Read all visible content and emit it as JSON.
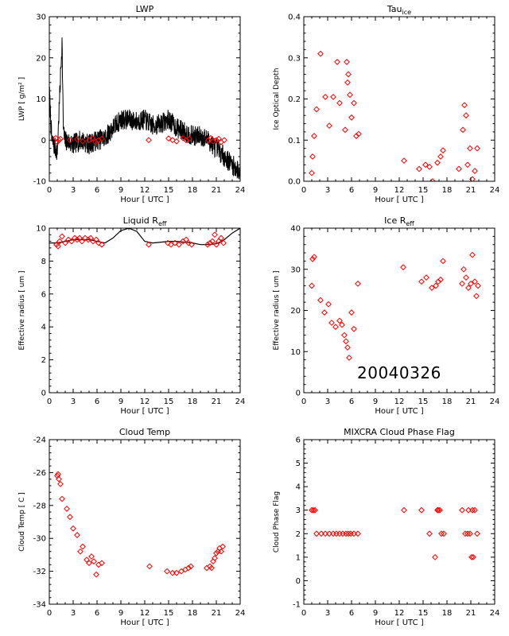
{
  "colors": {
    "axis": "#000000",
    "series": "#ff0000",
    "line": "#000000",
    "background": "#ffffff"
  },
  "date_label": "20040326",
  "chart_data": [
    {
      "type": "line",
      "title": "LWP",
      "title_sub": "",
      "xlabel": "Hour [ UTC ]",
      "ylabel": "LWP [ g/m² ]",
      "xlim": [
        0,
        24
      ],
      "ylim": [
        -10,
        30
      ],
      "xticks": [
        0,
        3,
        6,
        9,
        12,
        15,
        18,
        21,
        24
      ],
      "yticks": [
        -10,
        0,
        10,
        20,
        30
      ],
      "ytick_labels": [
        "-10",
        "0",
        "10",
        "20",
        "30"
      ],
      "grid": false,
      "noisy_series": {
        "name": "",
        "color": "#000000",
        "x": [
          0,
          0.3,
          1,
          1.6,
          1.75,
          1.9,
          3,
          4,
          5,
          6,
          7,
          8,
          9,
          10,
          11,
          12,
          13,
          14,
          15,
          16,
          17,
          18,
          19,
          20,
          21,
          22,
          23,
          24
        ],
        "y": [
          12,
          0,
          -3,
          24,
          4,
          0,
          -1,
          0,
          -1,
          0,
          0.5,
          3,
          5,
          5,
          4.5,
          5,
          3.5,
          4,
          5,
          3,
          2,
          1,
          1,
          0,
          -2,
          -4,
          -6,
          -8
        ],
        "noise": 2.5
      },
      "markers": {
        "name": "",
        "color": "#ff0000",
        "x": [
          0.8,
          1.0,
          1.2,
          1.4,
          2.6,
          3.5,
          4.2,
          5.0,
          5.4,
          5.8,
          6.2,
          6.6,
          12.5,
          15.0,
          15.5,
          16.0,
          16.8,
          17.2,
          17.6,
          20.0,
          20.3,
          20.6,
          21.0,
          21.3,
          21.6,
          22.0
        ],
        "y": [
          0.5,
          -0.5,
          0,
          0.3,
          0,
          0.2,
          -0.3,
          0,
          0.5,
          -0.4,
          0,
          0.3,
          0,
          0.4,
          0,
          -0.3,
          0.5,
          0,
          0.3,
          0,
          0.5,
          -0.3,
          0,
          0.3,
          -0.5,
          0
        ]
      }
    },
    {
      "type": "scatter",
      "title": "Tau",
      "title_sub": "ice",
      "xlabel": "Hour [ UTC ]",
      "ylabel": "Ice Optical Depth",
      "xlim": [
        0,
        24
      ],
      "ylim": [
        0,
        0.4
      ],
      "xticks": [
        0,
        3,
        6,
        9,
        12,
        15,
        18,
        21,
        24
      ],
      "yticks": [
        0,
        0.1,
        0.2,
        0.3,
        0.4
      ],
      "ytick_labels": [
        "0.0",
        "0.1",
        "0.2",
        "0.3",
        "0.4"
      ],
      "grid": false,
      "series": [
        {
          "name": "",
          "color": "#ff0000",
          "x": [
            1.0,
            1.1,
            1.3,
            1.6,
            2.1,
            2.7,
            3.2,
            3.7,
            4.2,
            4.5,
            5.2,
            5.4,
            5.5,
            5.6,
            5.8,
            6.0,
            6.3,
            6.6,
            6.9,
            12.6,
            14.5,
            15.3,
            15.8,
            16.2,
            16.8,
            17.2,
            17.5,
            19.5,
            20.0,
            20.2,
            20.4,
            20.6,
            20.9,
            21.2,
            21.5,
            21.8
          ],
          "y": [
            0.02,
            0.06,
            0.11,
            0.175,
            0.31,
            0.205,
            0.135,
            0.205,
            0.29,
            0.19,
            0.125,
            0.29,
            0.24,
            0.26,
            0.21,
            0.155,
            0.19,
            0.11,
            0.115,
            0.05,
            0.03,
            0.04,
            0.035,
            0.0,
            0.045,
            0.06,
            0.075,
            0.03,
            0.125,
            0.185,
            0.16,
            0.04,
            0.08,
            0.005,
            0.025,
            0.08
          ]
        }
      ]
    },
    {
      "type": "scatter",
      "title": "Liquid R",
      "title_sub": "eff",
      "xlabel": "Hour [ UTC ]",
      "ylabel": "Effective radius [ um ]",
      "xlim": [
        0,
        24
      ],
      "ylim": [
        0,
        10
      ],
      "xticks": [
        0,
        3,
        6,
        9,
        12,
        15,
        18,
        21,
        24
      ],
      "yticks": [
        0,
        2,
        4,
        6,
        8,
        10
      ],
      "ytick_labels": [
        "0",
        "2",
        "4",
        "6",
        "8",
        "10"
      ],
      "grid": false,
      "curve": {
        "name": "",
        "color": "#000000",
        "x": [
          0,
          1,
          2,
          3,
          4,
          5,
          6,
          7,
          8,
          9,
          10,
          11,
          12,
          13,
          14,
          15,
          16,
          17,
          18,
          19,
          20,
          21,
          22,
          23,
          24
        ],
        "y": [
          9.1,
          9.1,
          9.2,
          9.3,
          9.3,
          9.3,
          9.2,
          9.1,
          9.4,
          9.85,
          10.0,
          9.8,
          9.2,
          9.1,
          9.15,
          9.2,
          9.2,
          9.15,
          9.1,
          9.0,
          9.0,
          9.05,
          9.3,
          9.7,
          10.0
        ]
      },
      "series": [
        {
          "name": "",
          "color": "#ff0000",
          "x": [
            0.9,
            1.1,
            1.3,
            1.6,
            2.0,
            2.4,
            2.8,
            3.2,
            3.5,
            3.8,
            4.1,
            4.5,
            4.9,
            5.2,
            5.5,
            5.9,
            6.2,
            6.6,
            12.5,
            14.9,
            15.3,
            15.8,
            16.3,
            16.8,
            17.2,
            17.5,
            17.9,
            19.9,
            20.2,
            20.5,
            20.8,
            21.0,
            21.3,
            21.6,
            21.9
          ],
          "y": [
            9.0,
            8.9,
            9.2,
            9.5,
            9.1,
            9.3,
            9.2,
            9.4,
            9.3,
            9.4,
            9.2,
            9.4,
            9.3,
            9.4,
            9.2,
            9.3,
            9.1,
            9.0,
            9.0,
            9.1,
            9.0,
            9.1,
            9.0,
            9.2,
            9.3,
            9.1,
            9.0,
            9.0,
            9.1,
            9.2,
            9.6,
            9.0,
            9.2,
            9.4,
            9.1
          ]
        }
      ]
    },
    {
      "type": "scatter",
      "title": "Ice R",
      "title_sub": "eff",
      "xlabel": "Hour [ UTC ]",
      "ylabel": "Effective radius [ um ]",
      "xlim": [
        0,
        24
      ],
      "ylim": [
        0,
        40
      ],
      "xticks": [
        0,
        3,
        6,
        9,
        12,
        15,
        18,
        21,
        24
      ],
      "yticks": [
        0,
        10,
        20,
        30,
        40
      ],
      "ytick_labels": [
        "0",
        "10",
        "20",
        "30",
        "40"
      ],
      "grid": false,
      "annotation": "20040326",
      "series": [
        {
          "name": "",
          "color": "#ff0000",
          "x": [
            1.0,
            1.1,
            1.3,
            2.1,
            2.6,
            3.1,
            3.5,
            4.0,
            4.5,
            4.8,
            5.1,
            5.3,
            5.5,
            5.7,
            6.0,
            6.3,
            6.8,
            12.5,
            14.8,
            15.4,
            16.1,
            16.6,
            16.9,
            17.2,
            17.5,
            19.9,
            20.1,
            20.4,
            20.7,
            21.0,
            21.2,
            21.5,
            21.7,
            21.9
          ],
          "y": [
            26,
            32.5,
            33,
            22.5,
            19.5,
            21.5,
            17,
            16,
            17.5,
            16.5,
            14,
            12.5,
            11,
            8.5,
            19.5,
            15.5,
            26.5,
            30.5,
            27,
            28,
            25.5,
            26,
            27,
            27.5,
            32,
            26.5,
            30,
            28,
            25.5,
            26.5,
            33.5,
            27,
            23.5,
            26
          ]
        }
      ]
    },
    {
      "type": "scatter",
      "title": "Cloud Temp",
      "title_sub": "",
      "xlabel": "Hour [ UTC ]",
      "ylabel": "Cloud Temp [ C ]",
      "xlim": [
        0,
        24
      ],
      "ylim": [
        -34,
        -24
      ],
      "xticks": [
        0,
        3,
        6,
        9,
        12,
        15,
        18,
        21,
        24
      ],
      "yticks": [
        -34,
        -32,
        -30,
        -28,
        -26,
        -24
      ],
      "ytick_labels": [
        "-34",
        "-32",
        "-30",
        "-28",
        "-26",
        "-24"
      ],
      "grid": false,
      "series": [
        {
          "name": "",
          "color": "#ff0000",
          "x": [
            1.0,
            1.1,
            1.2,
            1.4,
            1.6,
            2.2,
            2.6,
            3.0,
            3.5,
            3.9,
            4.2,
            4.7,
            5.0,
            5.3,
            5.6,
            5.9,
            6.2,
            6.6,
            12.6,
            14.8,
            15.5,
            16.0,
            16.6,
            17.1,
            17.5,
            17.8,
            19.8,
            20.2,
            20.4,
            20.6,
            20.8,
            21.0,
            21.2,
            21.4,
            21.6,
            21.8
          ],
          "y": [
            -26.2,
            -26.1,
            -26.4,
            -26.7,
            -27.6,
            -28.2,
            -28.7,
            -29.4,
            -29.8,
            -30.8,
            -30.5,
            -31.3,
            -31.5,
            -31.1,
            -31.4,
            -32.2,
            -31.6,
            -31.5,
            -31.7,
            -32.0,
            -32.1,
            -32.1,
            -32.0,
            -31.9,
            -31.8,
            -31.7,
            -31.8,
            -31.7,
            -31.8,
            -31.4,
            -31.2,
            -30.9,
            -30.8,
            -30.6,
            -30.8,
            -30.5
          ]
        }
      ]
    },
    {
      "type": "scatter",
      "title": "MIXCRA Cloud Phase Flag",
      "title_sub": "",
      "xlabel": "Hour [ UTC ]",
      "ylabel": "Cloud Phase Flag",
      "xlim": [
        0,
        24
      ],
      "ylim": [
        -1,
        6
      ],
      "xticks": [
        0,
        3,
        6,
        9,
        12,
        15,
        18,
        21,
        24
      ],
      "yticks": [
        -1,
        0,
        1,
        2,
        3,
        4,
        5,
        6
      ],
      "ytick_labels": [
        "-1",
        "0",
        "1",
        "2",
        "3",
        "4",
        "5",
        "6"
      ],
      "grid": false,
      "series": [
        {
          "name": "",
          "color": "#ff0000",
          "x": [
            1.0,
            1.2,
            1.4,
            1.6,
            2.2,
            2.7,
            3.2,
            3.7,
            4.1,
            4.5,
            4.9,
            5.3,
            5.6,
            5.9,
            6.3,
            6.8,
            12.6,
            14.8,
            15.8,
            16.5,
            16.8,
            16.9,
            17.1,
            17.3,
            17.6,
            19.9,
            20.3,
            20.6,
            20.7,
            20.9,
            21.1,
            21.2,
            21.3,
            21.5,
            21.8
          ],
          "y": [
            3,
            3,
            3,
            2,
            2,
            2,
            2,
            2,
            2,
            2,
            2,
            2,
            2,
            2,
            2,
            2,
            3,
            3,
            2,
            1,
            3,
            3,
            3,
            2,
            2,
            3,
            2,
            2,
            3,
            2,
            1,
            3,
            1,
            3,
            2
          ]
        }
      ]
    }
  ]
}
